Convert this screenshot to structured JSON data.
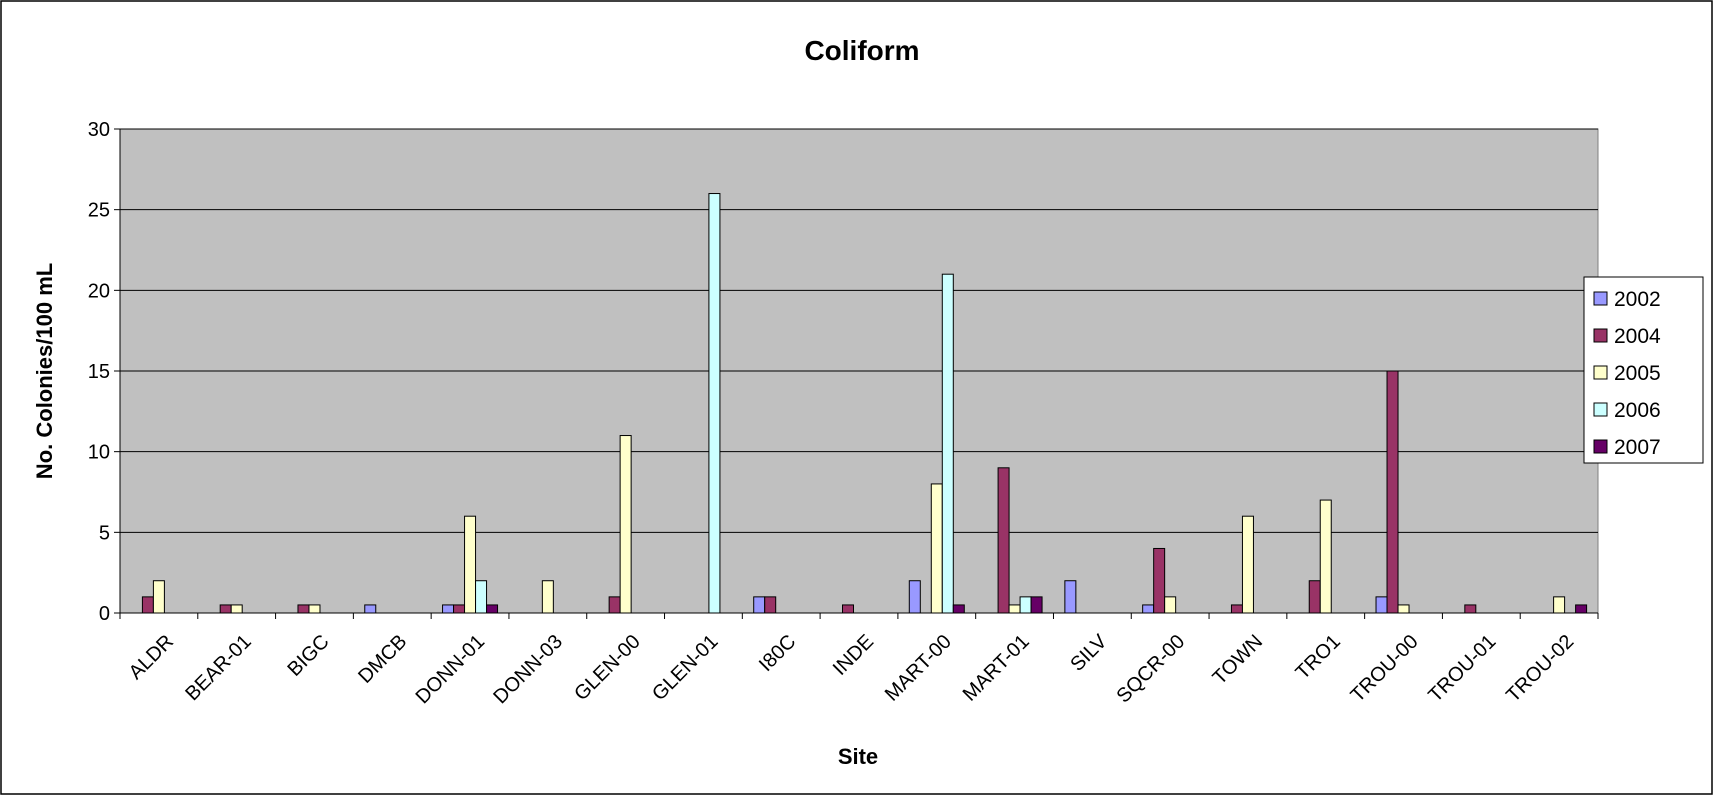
{
  "chart_data": {
    "type": "bar",
    "title": "Coliform",
    "xlabel": "Site",
    "ylabel": "No. Colonies/100 mL",
    "ylim": [
      0,
      30
    ],
    "yticks": [
      0,
      5,
      10,
      15,
      20,
      25,
      30
    ],
    "grid": true,
    "legend_position": "right",
    "categories": [
      "ALDR",
      "BEAR-01",
      "BIGC",
      "DMCB",
      "DONN-01",
      "DONN-03",
      "GLEN-00",
      "GLEN-01",
      "I80C",
      "INDE",
      "MART-00",
      "MART-01",
      "SILV",
      "SQCR-00",
      "TOWN",
      "TRO1",
      "TROU-00",
      "TROU-01",
      "TROU-02"
    ],
    "series": [
      {
        "name": "2002",
        "color": "#9999FF",
        "values": [
          null,
          null,
          null,
          0.5,
          0.5,
          null,
          null,
          null,
          1,
          null,
          2,
          null,
          2,
          0.5,
          null,
          null,
          1,
          null,
          null
        ]
      },
      {
        "name": "2004",
        "color": "#993366",
        "values": [
          1,
          0.5,
          0.5,
          null,
          0.5,
          null,
          1,
          null,
          1,
          0.5,
          null,
          9,
          null,
          4,
          0.5,
          2,
          15,
          0.5,
          null
        ]
      },
      {
        "name": "2005",
        "color": "#FFFFCC",
        "values": [
          2,
          0.5,
          0.5,
          null,
          6,
          2,
          11,
          null,
          null,
          null,
          8,
          0.5,
          null,
          1,
          6,
          7,
          0.5,
          null,
          1
        ]
      },
      {
        "name": "2006",
        "color": "#CCFFFF",
        "values": [
          null,
          null,
          null,
          null,
          2,
          null,
          null,
          26,
          null,
          null,
          21,
          1,
          null,
          null,
          null,
          null,
          null,
          null,
          null
        ]
      },
      {
        "name": "2007",
        "color": "#660066",
        "values": [
          null,
          null,
          null,
          null,
          0.5,
          null,
          null,
          null,
          null,
          null,
          0.5,
          1,
          null,
          null,
          null,
          null,
          null,
          null,
          0.5
        ]
      }
    ]
  }
}
